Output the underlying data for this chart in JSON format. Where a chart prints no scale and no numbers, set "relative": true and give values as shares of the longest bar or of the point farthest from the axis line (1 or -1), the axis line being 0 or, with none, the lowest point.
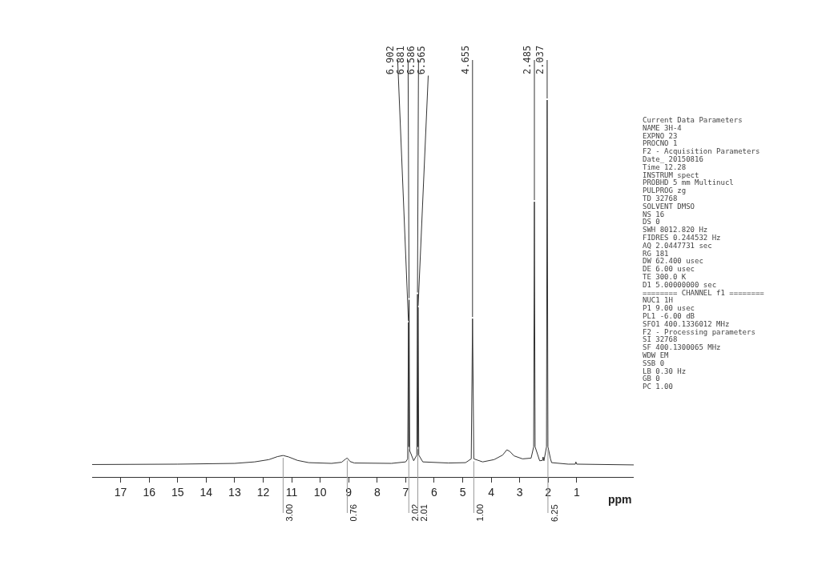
{
  "chart_data": {
    "type": "line",
    "relative": true,
    "xlabel": "ppm",
    "xlim": [
      18,
      -1
    ],
    "xticks": [
      17,
      16,
      15,
      14,
      13,
      12,
      11,
      10,
      9,
      8,
      7,
      6,
      5,
      4,
      3,
      2,
      1
    ],
    "marker": "none",
    "line_style": "solid",
    "tick_labels": "x",
    "x": [
      18,
      15,
      13,
      12.3,
      11.8,
      11.5,
      11.3,
      11.1,
      10.8,
      10.4,
      9.6,
      9.25,
      9.1,
      9.05,
      8.95,
      8.8,
      7.5,
      7.0,
      6.93,
      6.902,
      6.89,
      6.881,
      6.86,
      6.72,
      6.61,
      6.586,
      6.575,
      6.565,
      6.54,
      6.4,
      5.5,
      4.9,
      4.7,
      4.655,
      4.61,
      4.3,
      3.9,
      3.6,
      3.45,
      3.35,
      3.2,
      2.9,
      2.6,
      2.51,
      2.485,
      2.46,
      2.3,
      2.2,
      2.18,
      2.15,
      2.06,
      2.037,
      2.01,
      1.92,
      1.88,
      1.3,
      1.05,
      1.03,
      1.0,
      -1
    ],
    "series": [
      {
        "color": "#333333",
        "values": [
          0.033,
          0.034,
          0.036,
          0.04,
          0.046,
          0.054,
          0.057,
          0.053,
          0.044,
          0.038,
          0.036,
          0.039,
          0.048,
          0.05,
          0.041,
          0.037,
          0.036,
          0.04,
          0.048,
          0.41,
          0.08,
          0.47,
          0.07,
          0.043,
          0.058,
          0.485,
          0.08,
          0.45,
          0.058,
          0.04,
          0.037,
          0.038,
          0.048,
          0.42,
          0.048,
          0.04,
          0.046,
          0.058,
          0.072,
          0.068,
          0.056,
          0.048,
          0.05,
          0.08,
          0.73,
          0.08,
          0.043,
          0.044,
          0.053,
          0.043,
          0.08,
          1,
          0.08,
          0.048,
          0.038,
          0.034,
          0.034,
          0.04,
          0.034,
          0.032
        ]
      }
    ],
    "annotations": [
      {
        "text": "6.902",
        "x": 6.902,
        "y": 0.41
      },
      {
        "text": "6.881",
        "x": 6.881,
        "y": 0.47
      },
      {
        "text": "6.586",
        "x": 6.586,
        "y": 0.485
      },
      {
        "text": "6.565",
        "x": 6.565,
        "y": 0.45
      },
      {
        "text": "4.655",
        "x": 4.655,
        "y": 0.42
      },
      {
        "text": "2.485",
        "x": 2.485,
        "y": 0.73
      },
      {
        "text": "2.037",
        "x": 2.037,
        "y": 1
      },
      {
        "text": "3.00",
        "x": 11.3,
        "y": 0.057
      },
      {
        "text": "0.76",
        "x": 9.05,
        "y": 0.05
      },
      {
        "text": "2.02",
        "x": 6.89,
        "y": 0.08
      },
      {
        "text": "2.01",
        "x": 6.575,
        "y": 0.08
      },
      {
        "text": "1.00",
        "x": 4.61,
        "y": 0.048
      },
      {
        "text": "6.25",
        "x": 2.01,
        "y": 0.08
      },
      "Current Data Parameters",
      "NAME 3H-4",
      "EXPNO 23",
      "PROCNO 1",
      "F2 - Acquisition Parameters",
      "Date_ 20150816",
      "Time 12.28",
      "INSTRUM spect",
      "PROBHD 5 mm Multinucl",
      "PULPROG zg",
      "TD 32768",
      "SOLVENT DMSO",
      "NS 16",
      "DS 0",
      "SWH 8012.820 Hz",
      "FIDRES 0.244532 Hz",
      "AQ 2.0447731 sec",
      "RG 181",
      "DW 62.400 usec",
      "DE 6.00 usec",
      "TE 300.0 K",
      "D1 5.00000000 sec",
      "======== CHANNEL f1 ========",
      "NUC1 1H",
      "P1 9.00 usec",
      "PL1 -6.00 dB",
      "SFO1 400.1336012 MHz",
      "F2 - Processing parameters",
      "SI 32768",
      "SF 400.1300065 MHz",
      "WDW EM",
      "SSB 0",
      "LB 0.30 Hz",
      "GB 0",
      "PC 1.00"
    ]
  }
}
